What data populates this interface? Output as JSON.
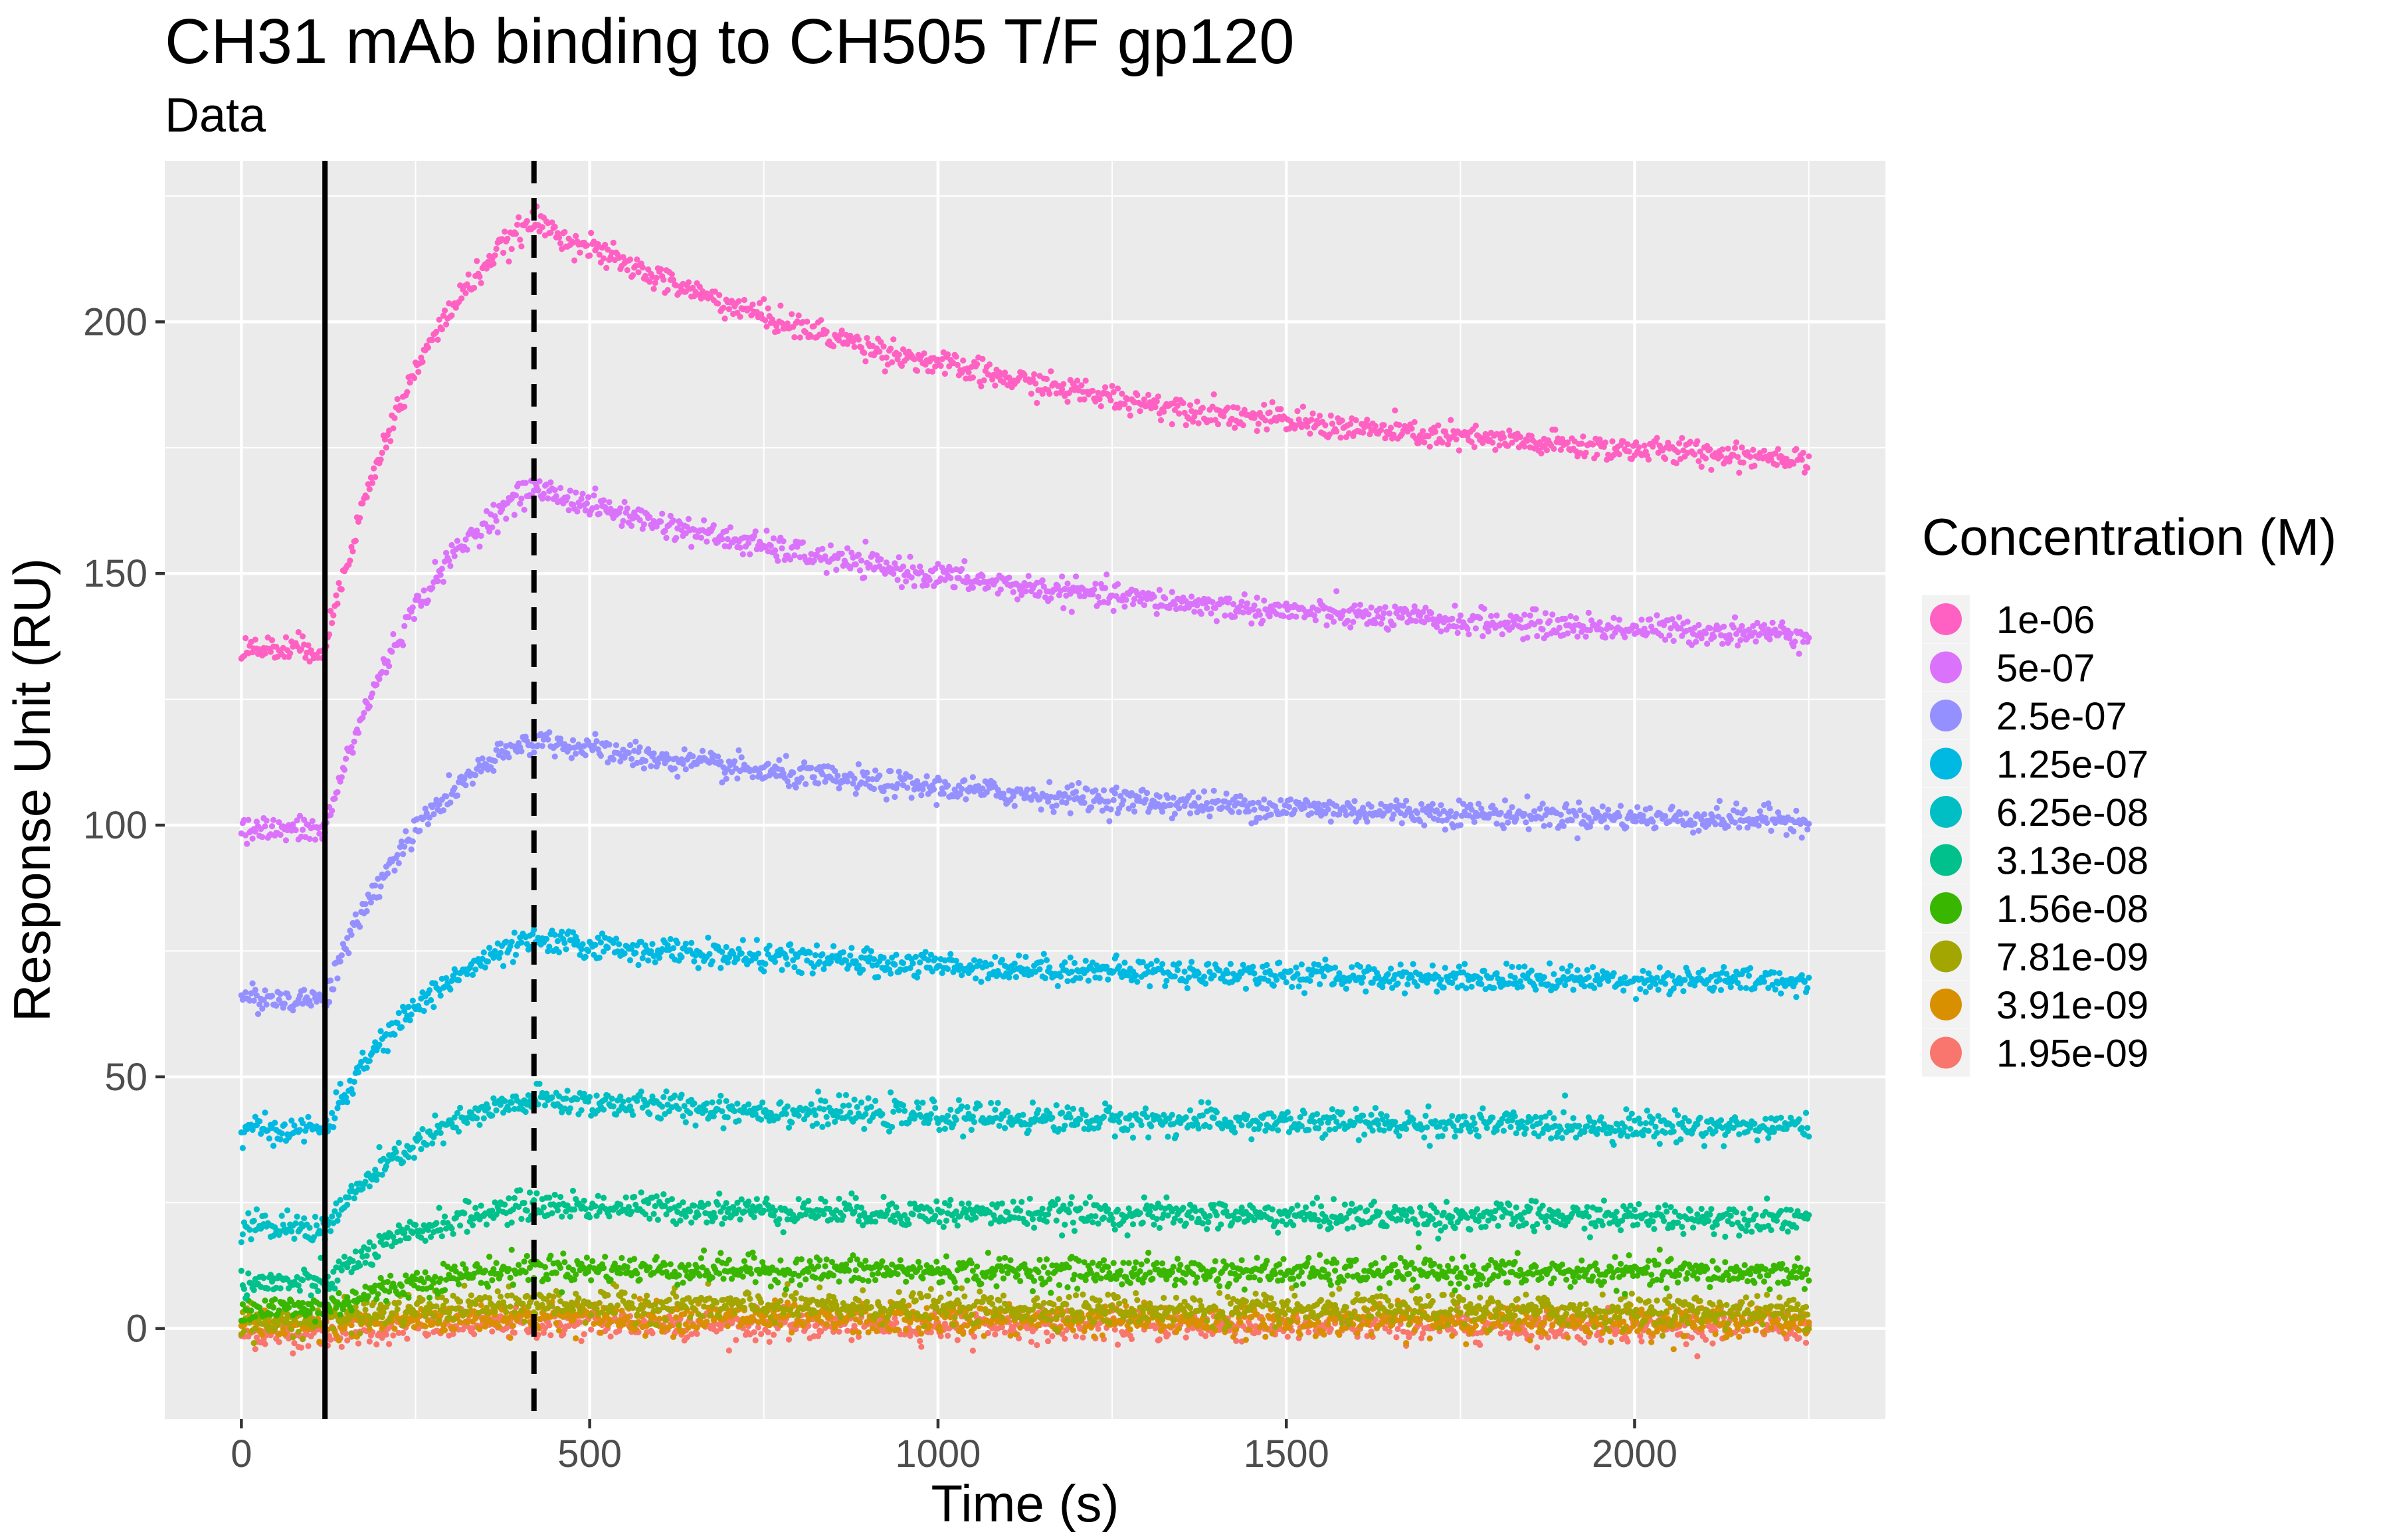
{
  "chart_data": {
    "type": "scatter",
    "title": "CH31 mAb binding to CH505 T/F gp120",
    "subtitle": "Data",
    "xlabel": "Time (s)",
    "ylabel": "Response Unit (RU)",
    "xlim": [
      -110,
      2360
    ],
    "ylim": [
      -18,
      232
    ],
    "x_ticks": [
      0,
      500,
      1000,
      1500,
      2000
    ],
    "x_tick_labels": [
      "0",
      "500",
      "1000",
      "1500",
      "2000"
    ],
    "y_ticks": [
      0,
      50,
      100,
      150,
      200
    ],
    "y_tick_labels": [
      "0",
      "50",
      "100",
      "150",
      "200"
    ],
    "grid": true,
    "legend": {
      "title": "Concentration (M)",
      "position": "right"
    },
    "x_range": [
      0,
      2250
    ],
    "association_start": 120,
    "dissociation_start": 420,
    "series": [
      {
        "name": "1e-06",
        "color": "#FF61C3",
        "baseline": 135,
        "peak": 220,
        "end": 173,
        "noise": 1.3
      },
      {
        "name": "5e-07",
        "color": "#DB72FB",
        "baseline": 99,
        "peak": 167,
        "end": 138,
        "noise": 1.3
      },
      {
        "name": "2.5e-07",
        "color": "#9590FF",
        "baseline": 65.5,
        "peak": 117,
        "end": 101,
        "noise": 1.3
      },
      {
        "name": "1.25e-07",
        "color": "#00B9E3",
        "baseline": 39.5,
        "peak": 77,
        "end": 69,
        "noise": 1.3
      },
      {
        "name": "6.25e-08",
        "color": "#00BFC4",
        "baseline": 20,
        "peak": 45.5,
        "end": 40,
        "noise": 1.4
      },
      {
        "name": "3.13e-08",
        "color": "#00C08B",
        "baseline": 9,
        "peak": 24.5,
        "end": 22,
        "noise": 1.4
      },
      {
        "name": "1.56e-08",
        "color": "#39B600",
        "baseline": 4,
        "peak": 12,
        "end": 11,
        "noise": 1.4
      },
      {
        "name": "7.81e-09",
        "color": "#A3A500",
        "baseline": 1.5,
        "peak": 5,
        "end": 3.5,
        "noise": 1.5
      },
      {
        "name": "3.91e-09",
        "color": "#D89000",
        "baseline": 0.5,
        "peak": 2.5,
        "end": 1.5,
        "noise": 1.5
      },
      {
        "name": "1.95e-09",
        "color": "#F8766D",
        "baseline": -1,
        "peak": 1,
        "end": 0.5,
        "noise": 1.5
      }
    ]
  }
}
